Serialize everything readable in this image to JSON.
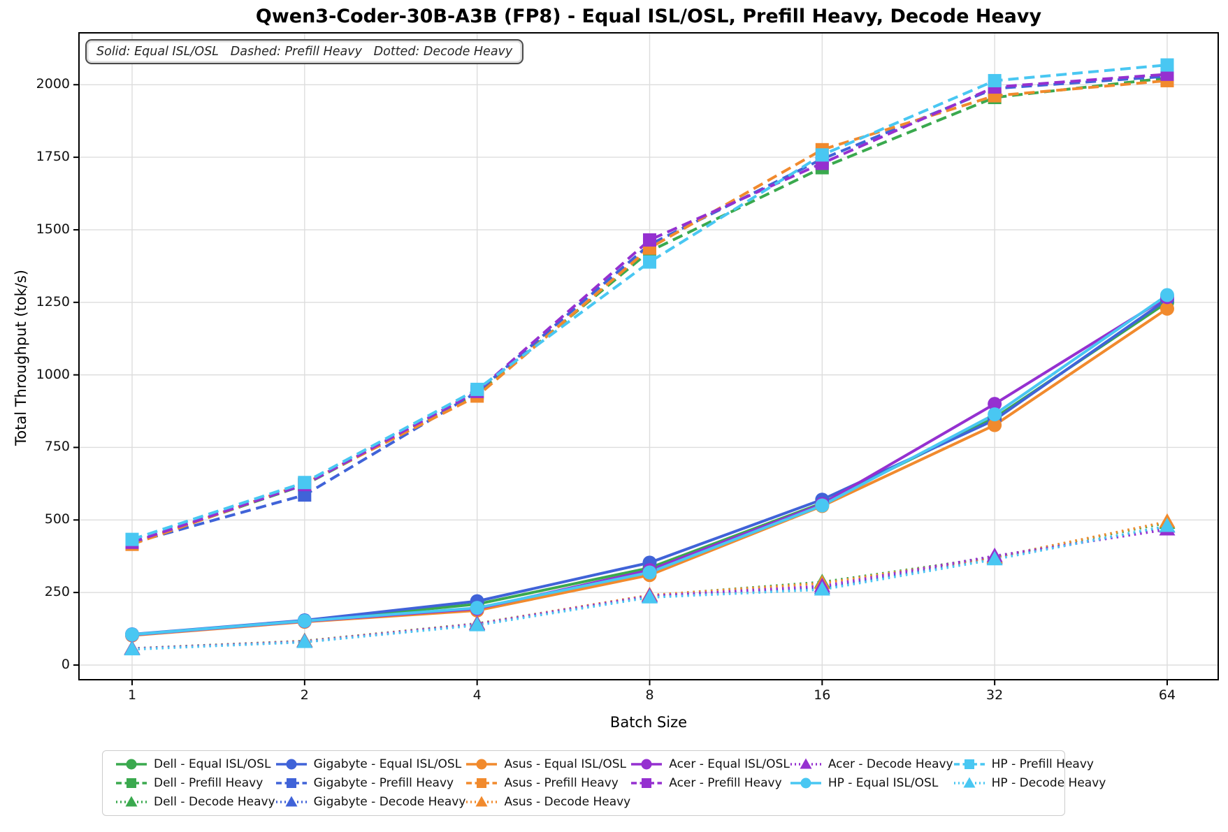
{
  "title": "Qwen3-Coder-30B-A3B (FP8) - Equal ISL/OSL, Prefill Heavy, Decode Heavy",
  "annotation": "Solid: Equal ISL/OSL   Dashed: Prefill Heavy   Dotted: Decode Heavy",
  "chart_data": {
    "type": "line",
    "title": "Qwen3-Coder-30B-A3B (FP8) - Equal ISL/OSL, Prefill Heavy, Decode Heavy",
    "xlabel": "Batch Size",
    "ylabel": "Total Throughput (tok/s)",
    "xscale": "log2",
    "x": [
      1,
      2,
      4,
      8,
      16,
      32,
      64
    ],
    "xticks": [
      "1",
      "2",
      "4",
      "8",
      "16",
      "32",
      "64"
    ],
    "yticks": [
      0,
      250,
      500,
      750,
      1000,
      1250,
      1500,
      1750,
      2000
    ],
    "ylim": [
      -52,
      2180
    ],
    "grid": true,
    "legend_position": "bottom",
    "style_map": {
      "solid": "Equal ISL/OSL",
      "dashed": "Prefill Heavy",
      "dotted": "Decode Heavy"
    },
    "vendor_colors": {
      "Dell": "#3aa94e",
      "Gigabyte": "#4063d8",
      "Asus": "#f18a2d",
      "Acer": "#9530d0",
      "HP": "#49c7f2"
    },
    "series": [
      {
        "name": "Dell - Equal ISL/OSL",
        "vendor": "Dell",
        "color": "#3aa94e",
        "style": "solid",
        "marker": "circle",
        "values": [
          104,
          152,
          210,
          335,
          558,
          852,
          1250
        ]
      },
      {
        "name": "Dell - Prefill Heavy",
        "vendor": "Dell",
        "color": "#3aa94e",
        "style": "dashed",
        "marker": "square",
        "values": [
          419,
          621,
          936,
          1426,
          1714,
          1956,
          2023
        ]
      },
      {
        "name": "Dell - Decode Heavy",
        "vendor": "Dell",
        "color": "#3aa94e",
        "style": "dotted",
        "marker": "triangle",
        "values": [
          57,
          83,
          143,
          240,
          286,
          372,
          490
        ]
      },
      {
        "name": "Gigabyte - Equal ISL/OSL",
        "vendor": "Gigabyte",
        "color": "#4063d8",
        "style": "solid",
        "marker": "circle",
        "values": [
          106,
          154,
          220,
          353,
          570,
          845,
          1260
        ]
      },
      {
        "name": "Gigabyte - Prefill Heavy",
        "vendor": "Gigabyte",
        "color": "#4063d8",
        "style": "dashed",
        "marker": "square",
        "values": [
          421,
          586,
          941,
          1449,
          1744,
          1987,
          2029
        ]
      },
      {
        "name": "Gigabyte - Decode Heavy",
        "vendor": "Gigabyte",
        "color": "#4063d8",
        "style": "dotted",
        "marker": "triangle",
        "values": [
          55,
          80,
          140,
          236,
          265,
          368,
          477
        ]
      },
      {
        "name": "Asus - Equal ISL/OSL",
        "vendor": "Asus",
        "color": "#f18a2d",
        "style": "solid",
        "marker": "circle",
        "values": [
          102,
          149,
          188,
          310,
          548,
          827,
          1228
        ]
      },
      {
        "name": "Asus - Prefill Heavy",
        "vendor": "Asus",
        "color": "#f18a2d",
        "style": "dashed",
        "marker": "square",
        "values": [
          416,
          625,
          927,
          1437,
          1776,
          1962,
          2014
        ]
      },
      {
        "name": "Asus - Decode Heavy",
        "vendor": "Asus",
        "color": "#f18a2d",
        "style": "dotted",
        "marker": "triangle",
        "values": [
          56,
          82,
          142,
          241,
          282,
          371,
          494
        ]
      },
      {
        "name": "Acer - Equal ISL/OSL",
        "vendor": "Acer",
        "color": "#9530d0",
        "style": "solid",
        "marker": "circle",
        "values": [
          104,
          151,
          194,
          327,
          555,
          900,
          1268
        ]
      },
      {
        "name": "Acer - Prefill Heavy",
        "vendor": "Acer",
        "color": "#9530d0",
        "style": "dashed",
        "marker": "square",
        "values": [
          423,
          622,
          943,
          1465,
          1729,
          1992,
          2036
        ]
      },
      {
        "name": "Acer - Decode Heavy",
        "vendor": "Acer",
        "color": "#9530d0",
        "style": "dotted",
        "marker": "triangle",
        "values": [
          56,
          81,
          141,
          238,
          272,
          376,
          467
        ]
      },
      {
        "name": "HP - Equal ISL/OSL",
        "vendor": "HP",
        "color": "#49c7f2",
        "style": "solid",
        "marker": "circle",
        "values": [
          105,
          152,
          197,
          319,
          550,
          864,
          1275
        ]
      },
      {
        "name": "HP - Prefill Heavy",
        "vendor": "HP",
        "color": "#49c7f2",
        "style": "dashed",
        "marker": "square",
        "values": [
          433,
          629,
          950,
          1389,
          1758,
          2014,
          2068
        ]
      },
      {
        "name": "HP - Decode Heavy",
        "vendor": "HP",
        "color": "#49c7f2",
        "style": "dotted",
        "marker": "triangle",
        "values": [
          54,
          79,
          137,
          233,
          260,
          364,
          479
        ]
      }
    ],
    "legend_columns": [
      [
        0,
        1,
        2
      ],
      [
        3,
        4,
        5
      ],
      [
        6,
        7,
        8
      ],
      [
        9,
        10
      ],
      [
        11,
        12
      ],
      [
        13,
        14
      ]
    ]
  }
}
